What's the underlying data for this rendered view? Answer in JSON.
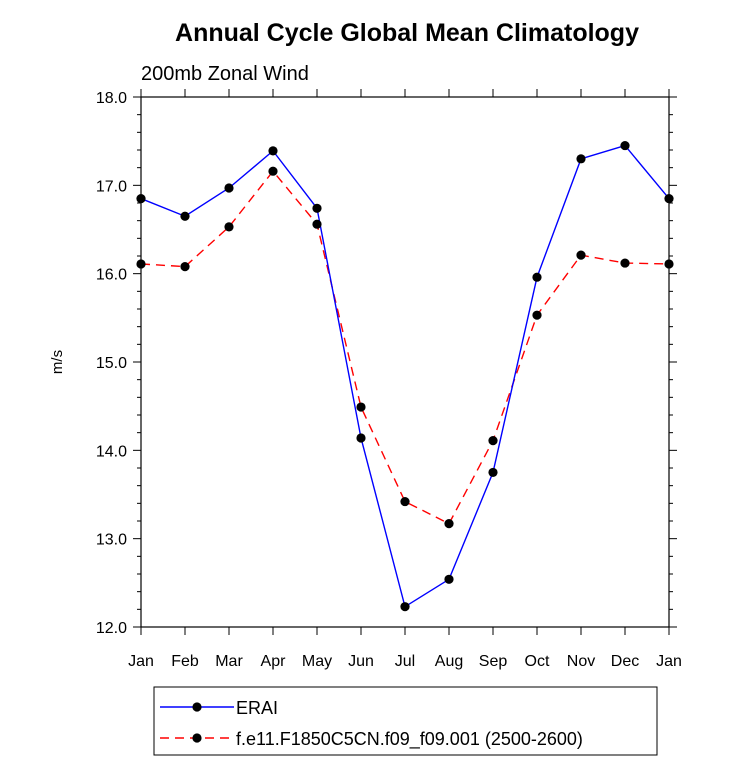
{
  "chart_data": {
    "type": "line",
    "title": "Annual Cycle Global Mean Climatology",
    "subtitle": "200mb Zonal Wind",
    "xlabel": "",
    "ylabel": "m/s",
    "categories": [
      "Jan",
      "Feb",
      "Mar",
      "Apr",
      "May",
      "Jun",
      "Jul",
      "Aug",
      "Sep",
      "Oct",
      "Nov",
      "Dec",
      "Jan"
    ],
    "ylim": [
      12.0,
      18.0
    ],
    "yticks": [
      "12.0",
      "13.0",
      "14.0",
      "15.0",
      "16.0",
      "17.0",
      "18.0"
    ],
    "grid": false,
    "legend_position": "bottom",
    "series": [
      {
        "name": "ERAI",
        "color": "#0000ff",
        "line_style": "solid",
        "marker": "filled-circle",
        "values": [
          16.85,
          16.65,
          16.97,
          17.39,
          16.74,
          14.14,
          12.23,
          12.54,
          13.75,
          15.96,
          17.3,
          17.45,
          16.85
        ]
      },
      {
        "name": "f.e11.F1850C5CN.f09_f09.001 (2500-2600)",
        "color": "#ff0000",
        "line_style": "dashed",
        "marker": "filled-circle",
        "values": [
          16.11,
          16.08,
          16.53,
          17.16,
          16.56,
          14.49,
          13.42,
          13.17,
          14.11,
          15.53,
          16.21,
          16.12,
          16.11
        ]
      }
    ]
  }
}
